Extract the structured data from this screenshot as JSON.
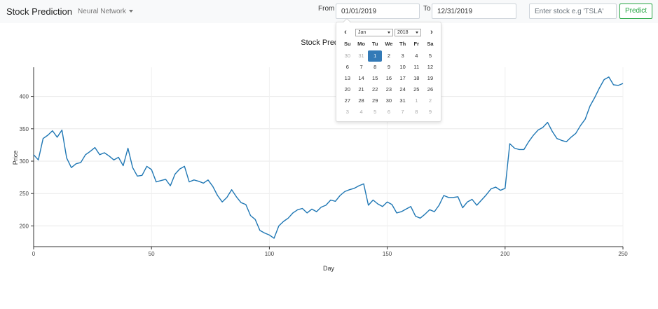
{
  "navbar": {
    "brand": "Stock Prediction",
    "model_label": "Neural Network",
    "from_label": "From",
    "from_value": "01/01/2019",
    "to_label": "To",
    "to_value": "12/31/2019",
    "stock_placeholder": "Enter stock e.g 'TSLA'",
    "predict_label": "Predict"
  },
  "datepicker": {
    "month": "Jan",
    "year": "2018",
    "prev_icon": "chevron-left-icon",
    "next_icon": "chevron-right-icon",
    "weekdays": [
      "Su",
      "Mo",
      "Tu",
      "We",
      "Th",
      "Fr",
      "Sa"
    ],
    "weeks": [
      [
        "30",
        "31",
        "1",
        "2",
        "3",
        "4",
        "5"
      ],
      [
        "6",
        "7",
        "8",
        "9",
        "10",
        "11",
        "12"
      ],
      [
        "13",
        "14",
        "15",
        "16",
        "17",
        "18",
        "19"
      ],
      [
        "20",
        "21",
        "22",
        "23",
        "24",
        "25",
        "26"
      ],
      [
        "27",
        "28",
        "29",
        "30",
        "31",
        "1",
        "2"
      ],
      [
        "3",
        "4",
        "5",
        "6",
        "7",
        "8",
        "9"
      ]
    ],
    "muted": [
      [
        0,
        0
      ],
      [
        0,
        1
      ],
      [
        4,
        5
      ],
      [
        4,
        6
      ],
      [
        5,
        0
      ],
      [
        5,
        1
      ],
      [
        5,
        2
      ],
      [
        5,
        3
      ],
      [
        5,
        4
      ],
      [
        5,
        5
      ],
      [
        5,
        6
      ]
    ],
    "selected": [
      0,
      2
    ]
  },
  "chart_data": {
    "type": "line",
    "title": "Stock Prediction",
    "xlabel": "Day",
    "ylabel": "Price",
    "xlim": [
      0,
      250
    ],
    "ylim": [
      168,
      445
    ],
    "xticks": [
      0,
      50,
      100,
      150,
      200,
      250
    ],
    "yticks": [
      200,
      250,
      300,
      350,
      400
    ],
    "grid": true,
    "color": "#1f77b4",
    "series": [
      {
        "x": [
          0,
          2,
          4,
          6,
          8,
          10,
          12,
          14,
          16,
          18,
          20,
          22,
          24,
          26,
          28,
          30,
          32,
          34,
          36,
          38,
          40,
          42,
          44,
          46,
          48,
          50,
          52,
          54,
          56,
          58,
          60,
          62,
          64,
          66,
          68,
          70,
          72,
          74,
          76,
          78,
          80,
          82,
          84,
          86,
          88,
          90,
          92,
          94,
          96,
          98,
          100,
          102,
          104,
          106,
          108,
          110,
          112,
          114,
          116,
          118,
          120,
          122,
          124,
          126,
          128,
          130,
          132,
          134,
          136,
          138,
          140,
          142,
          144,
          146,
          148,
          150,
          152,
          154,
          156,
          158,
          160,
          162,
          164,
          166,
          168,
          170,
          172,
          174,
          176,
          178,
          180,
          182,
          184,
          186,
          188,
          190,
          192,
          194,
          196,
          198,
          200,
          202,
          204,
          206,
          208,
          210,
          212,
          214,
          216,
          218,
          220,
          222,
          224,
          226,
          228,
          230,
          232,
          234,
          236,
          238,
          240,
          242,
          244,
          246,
          248,
          250
        ],
        "y": [
          310,
          302,
          335,
          340,
          347,
          337,
          348,
          305,
          290,
          296,
          298,
          310,
          315,
          321,
          310,
          313,
          308,
          302,
          306,
          293,
          320,
          290,
          277,
          278,
          292,
          287,
          268,
          270,
          272,
          262,
          280,
          288,
          292,
          268,
          271,
          269,
          266,
          271,
          261,
          247,
          237,
          244,
          256,
          245,
          236,
          233,
          216,
          210,
          193,
          189,
          186,
          181,
          200,
          207,
          212,
          220,
          225,
          227,
          220,
          226,
          222,
          229,
          232,
          240,
          238,
          247,
          253,
          256,
          258,
          262,
          265,
          232,
          240,
          234,
          230,
          237,
          233,
          220,
          222,
          226,
          230,
          215,
          212,
          218,
          225,
          222,
          232,
          247,
          244,
          244,
          245,
          228,
          237,
          241,
          232,
          240,
          248,
          257,
          260,
          255,
          258,
          327,
          320,
          318,
          318,
          330,
          340,
          348,
          352,
          360,
          346,
          335,
          332,
          330,
          337,
          343,
          355,
          365,
          385,
          398,
          413,
          426,
          430,
          418,
          417,
          420
        ]
      }
    ]
  }
}
